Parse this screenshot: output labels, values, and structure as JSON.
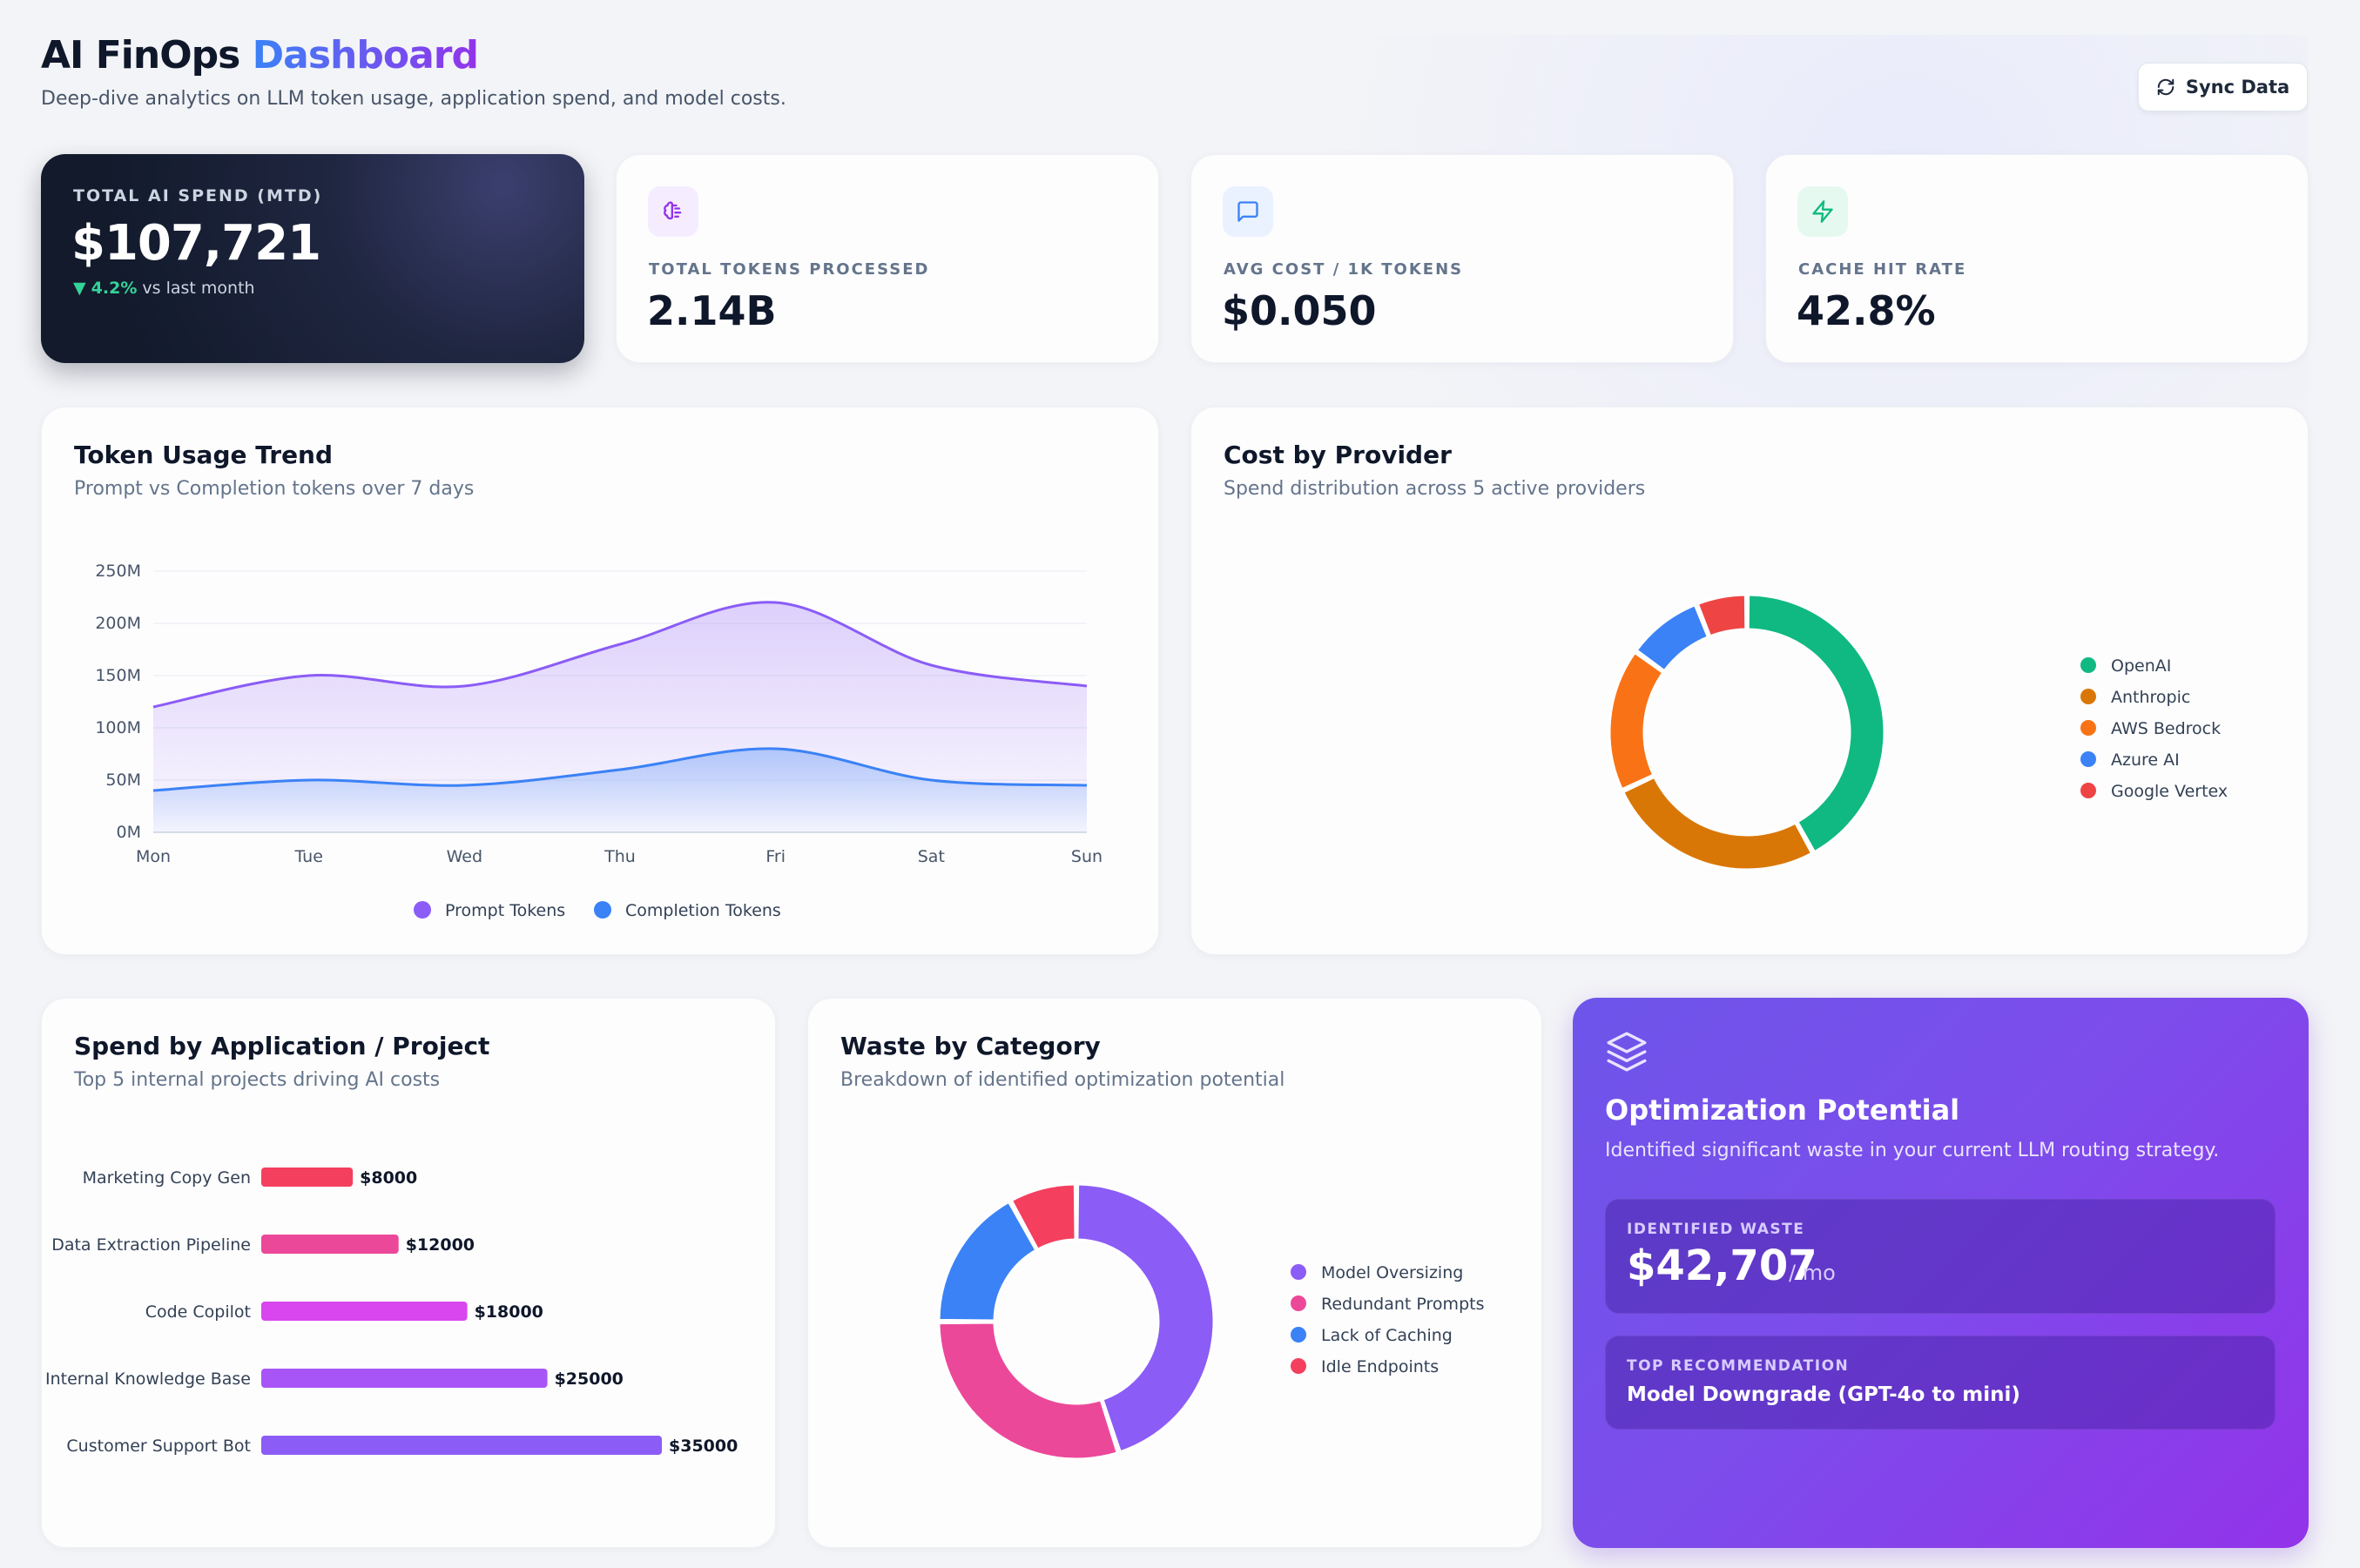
{
  "header": {
    "title_main": "AI FinOps",
    "title_accent": "Dashboard",
    "subtitle": "Deep-dive analytics on LLM token usage, application spend, and model costs.",
    "sync_label": "Sync Data"
  },
  "stats": {
    "spend": {
      "label": "TOTAL AI SPEND (MTD)",
      "value": "$107,721",
      "delta_pct": "4.2%",
      "delta_text": "vs last month"
    },
    "tokens": {
      "label": "TOTAL TOKENS PROCESSED",
      "value": "2.14B",
      "icon": "brain-icon",
      "color": "#9333ea"
    },
    "avg_cost": {
      "label": "AVG COST / 1K TOKENS",
      "value": "$0.050",
      "icon": "message-icon",
      "color": "#3b82f6"
    },
    "cache": {
      "label": "CACHE HIT RATE",
      "value": "42.8%",
      "icon": "zap-icon",
      "color": "#10b981"
    }
  },
  "token_trend": {
    "title": "Token Usage Trend",
    "subtitle": "Prompt vs Completion tokens over 7 days"
  },
  "provider_cost": {
    "title": "Cost by Provider",
    "subtitle": "Spend distribution across 5 active providers"
  },
  "app_spend": {
    "title": "Spend by Application / Project",
    "subtitle": "Top 5 internal projects driving AI costs"
  },
  "waste": {
    "title": "Waste by Category",
    "subtitle": "Breakdown of identified optimization potential"
  },
  "optimization": {
    "title": "Optimization Potential",
    "description": "Identified significant waste in your current LLM routing strategy.",
    "waste_label": "IDENTIFIED WASTE",
    "waste_value": "$42,707",
    "waste_unit": "/ mo",
    "rec_label": "TOP RECOMMENDATION",
    "rec_value": "Model Downgrade (GPT-4o to mini)"
  },
  "chart_data": [
    {
      "type": "area",
      "categories": [
        "Mon",
        "Tue",
        "Wed",
        "Thu",
        "Fri",
        "Sat",
        "Sun"
      ],
      "series": [
        {
          "name": "Prompt Tokens",
          "values": [
            120,
            150,
            140,
            180,
            220,
            160,
            140
          ],
          "color": "#8b5cf6"
        },
        {
          "name": "Completion Tokens",
          "values": [
            40,
            50,
            45,
            60,
            80,
            50,
            45
          ],
          "color": "#3b82f6"
        }
      ],
      "yticks": [
        "0M",
        "50M",
        "100M",
        "150M",
        "200M",
        "250M"
      ],
      "ylim": [
        0,
        250
      ],
      "legend": "bottom"
    },
    {
      "type": "pie",
      "labels": [
        "OpenAI",
        "Anthropic",
        "AWS Bedrock",
        "Azure AI",
        "Google Vertex"
      ],
      "values": [
        42,
        26,
        17,
        9,
        6
      ],
      "colors": [
        "#10b981",
        "#d97706",
        "#f97316",
        "#3b82f6",
        "#ef4444"
      ],
      "legend": "right"
    },
    {
      "type": "bar",
      "orientation": "horizontal",
      "categories": [
        "Marketing Copy Gen",
        "Data Extraction Pipeline",
        "Code Copilot",
        "Internal Knowledge Base",
        "Customer Support Bot"
      ],
      "values": [
        8000,
        12000,
        18000,
        25000,
        35000
      ],
      "value_labels": [
        "$8000",
        "$12000",
        "$18000",
        "$25000",
        "$35000"
      ],
      "colors": [
        "#f43f5e",
        "#ec4899",
        "#d946ef",
        "#a855f7",
        "#8b5cf6"
      ],
      "xlim": [
        0,
        35000
      ]
    },
    {
      "type": "pie",
      "labels": [
        "Model Oversizing",
        "Redundant Prompts",
        "Lack of Caching",
        "Idle Endpoints"
      ],
      "values": [
        45,
        30,
        17,
        8
      ],
      "colors": [
        "#8b5cf6",
        "#ec4899",
        "#3b82f6",
        "#f43f5e"
      ],
      "legend": "right"
    }
  ]
}
